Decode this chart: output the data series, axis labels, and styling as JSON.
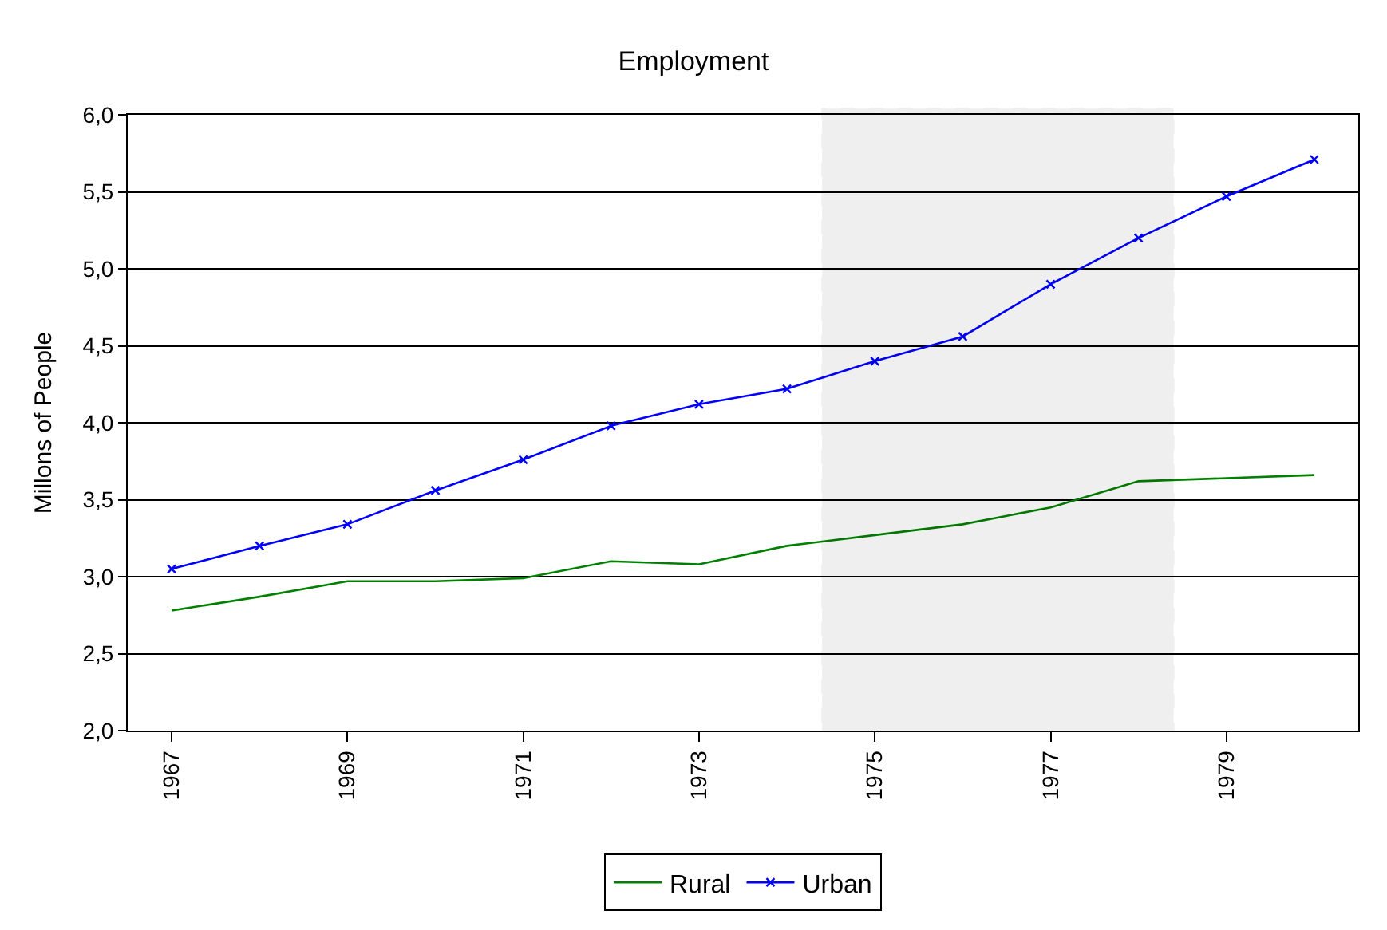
{
  "chart_data": {
    "type": "line",
    "title": "Employment",
    "ylabel": "Millons of People",
    "x": [
      1967,
      1968,
      1969,
      1970,
      1971,
      1972,
      1973,
      1974,
      1975,
      1976,
      1977,
      1978,
      1979,
      1980
    ],
    "series": [
      {
        "name": "Rural",
        "color": "#008000",
        "marker": "none",
        "values": [
          2.78,
          2.87,
          2.97,
          2.97,
          2.99,
          3.1,
          3.08,
          3.2,
          3.27,
          3.34,
          3.45,
          3.62,
          3.64,
          3.66
        ]
      },
      {
        "name": "Urban",
        "color": "#0000ff",
        "marker": "cross",
        "values": [
          3.05,
          3.2,
          3.34,
          3.56,
          3.76,
          3.98,
          4.12,
          4.22,
          4.4,
          4.56,
          4.9,
          5.2,
          5.47,
          5.71
        ]
      }
    ],
    "xlim": [
      1966.5,
      1980.5
    ],
    "xticks": [
      1967,
      1969,
      1971,
      1973,
      1975,
      1977,
      1979
    ],
    "ylim": [
      2,
      6
    ],
    "yticks": [
      {
        "value": 2,
        "label": "2,0"
      },
      {
        "value": 2.5,
        "label": "2,5"
      },
      {
        "value": 3,
        "label": "3,0"
      },
      {
        "value": 3.5,
        "label": "3,5"
      },
      {
        "value": 4,
        "label": "4,0"
      },
      {
        "value": 4.5,
        "label": "4,5"
      },
      {
        "value": 5,
        "label": "5,0"
      },
      {
        "value": 5.5,
        "label": "5,5"
      },
      {
        "value": 6,
        "label": "6,0"
      }
    ],
    "bands": [
      {
        "axis": "x",
        "from": 1974.4,
        "to": 1978.4,
        "color": "#000000"
      }
    ],
    "grid": "y",
    "legend": "bottom",
    "line_style": "solid"
  }
}
